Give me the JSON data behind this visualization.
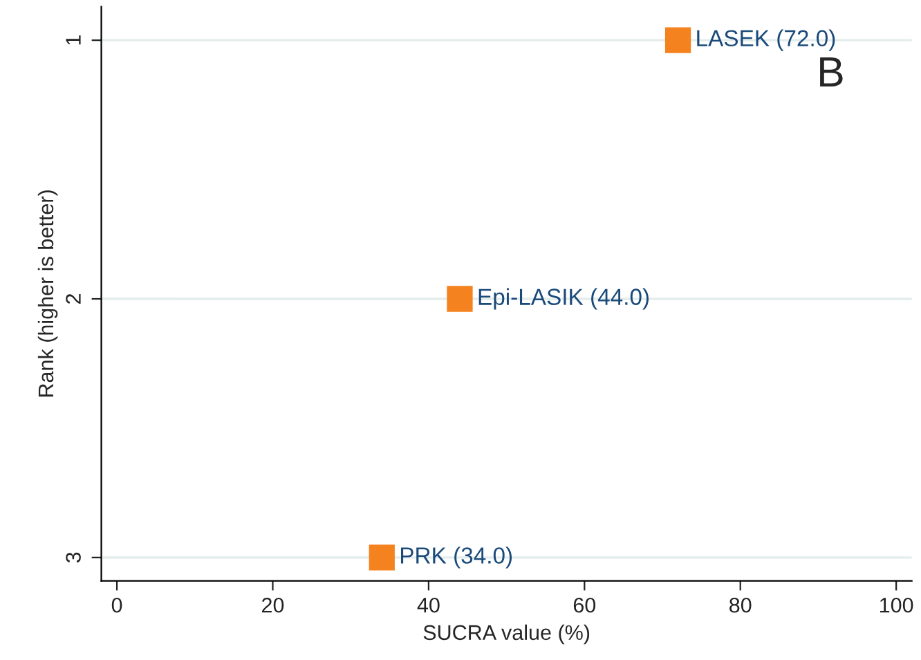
{
  "chart_data": {
    "type": "scatter",
    "xlabel": "SUCRA value (%)",
    "ylabel": "Rank (higher is better)",
    "x": [
      72.0,
      44.0,
      34.0
    ],
    "series": [
      {
        "color": "#f4821f",
        "values": [
          1,
          2,
          3
        ]
      }
    ],
    "marker": "square",
    "grid": "y",
    "legend": false,
    "xlim": [
      -2,
      102
    ],
    "xticks": [
      0,
      20,
      40,
      60,
      80,
      100
    ],
    "ylim": [
      3.09,
      0.87
    ],
    "yticks": [
      1,
      2,
      3
    ],
    "annotations": [
      {
        "text": "LASEK (72.0)",
        "x": 72.0,
        "y": 1
      },
      {
        "text": "Epi-LASIK (44.0)",
        "x": 44.0,
        "y": 2
      },
      {
        "text": "PRK (34.0)",
        "x": 34.0,
        "y": 3
      },
      "B"
    ]
  }
}
